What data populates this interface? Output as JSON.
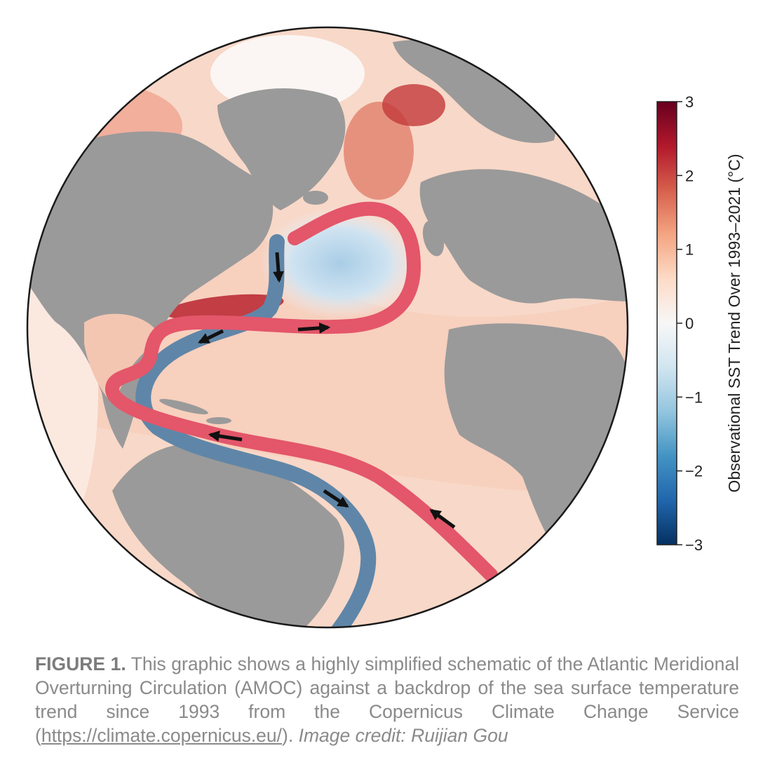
{
  "map": {
    "colorbar": {
      "title": "Observational SST Trend Over 1993–2021 (°C)",
      "ticks": [
        "3",
        "2",
        "1",
        "0",
        "−1",
        "−2",
        "−3"
      ],
      "range": [
        -3,
        3
      ],
      "colors": [
        "#053061",
        "#2166ac",
        "#4393c3",
        "#92c5de",
        "#d1e5f0",
        "#f7f7f7",
        "#fddbc7",
        "#f4a582",
        "#d6604d",
        "#b2182b",
        "#67001f"
      ]
    },
    "currents": {
      "warm_color": "#e4566a",
      "cold_color": "#5f86a8",
      "land_color": "#9a9a9a"
    }
  },
  "caption": {
    "lead": "FIGURE 1.",
    "text": " This graphic shows a highly simplified schematic of the Atlantic Meridional Overturning Circulation (AMOC) against a backdrop of the sea surface temperature trend since 1993 from the Copernicus Climate Change Service (",
    "url": "https://climate.copernicus.eu/",
    "after_url": "). ",
    "credit": "Image credit: Ruijian Gou"
  }
}
